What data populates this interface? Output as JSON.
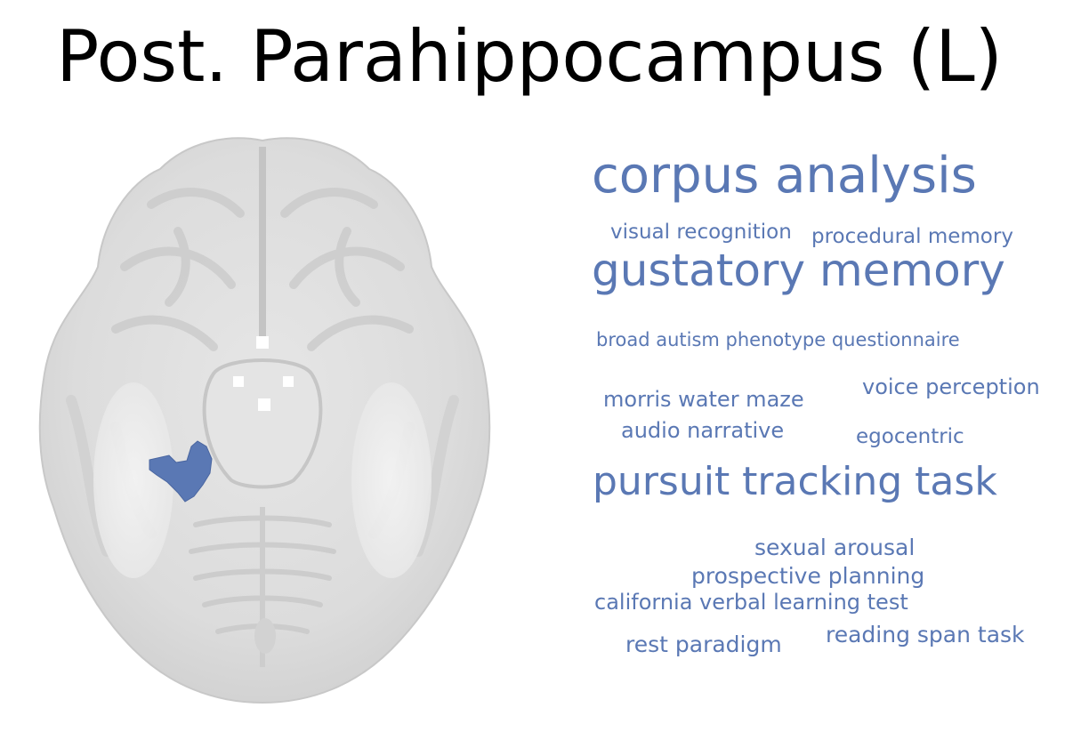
{
  "figure": {
    "title": "Post. Parahippocampus (L)",
    "region_color": "#5a78b4"
  },
  "wordcloud": {
    "color": "#5a78b4",
    "terms": [
      {
        "text": "corpus analysis",
        "weight": 5
      },
      {
        "text": "visual recognition",
        "weight": 1
      },
      {
        "text": "procedural memory",
        "weight": 1
      },
      {
        "text": "gustatory memory",
        "weight": 5
      },
      {
        "text": "broad autism phenotype questionnaire",
        "weight": 1
      },
      {
        "text": "morris water maze",
        "weight": 1
      },
      {
        "text": "voice perception",
        "weight": 1
      },
      {
        "text": "audio narrative",
        "weight": 1
      },
      {
        "text": "egocentric",
        "weight": 1
      },
      {
        "text": "pursuit tracking task",
        "weight": 4
      },
      {
        "text": "sexual arousal",
        "weight": 1
      },
      {
        "text": "prospective planning",
        "weight": 1
      },
      {
        "text": "california verbal learning test",
        "weight": 1
      },
      {
        "text": "rest paradigm",
        "weight": 1
      },
      {
        "text": "reading span task",
        "weight": 1
      }
    ]
  }
}
